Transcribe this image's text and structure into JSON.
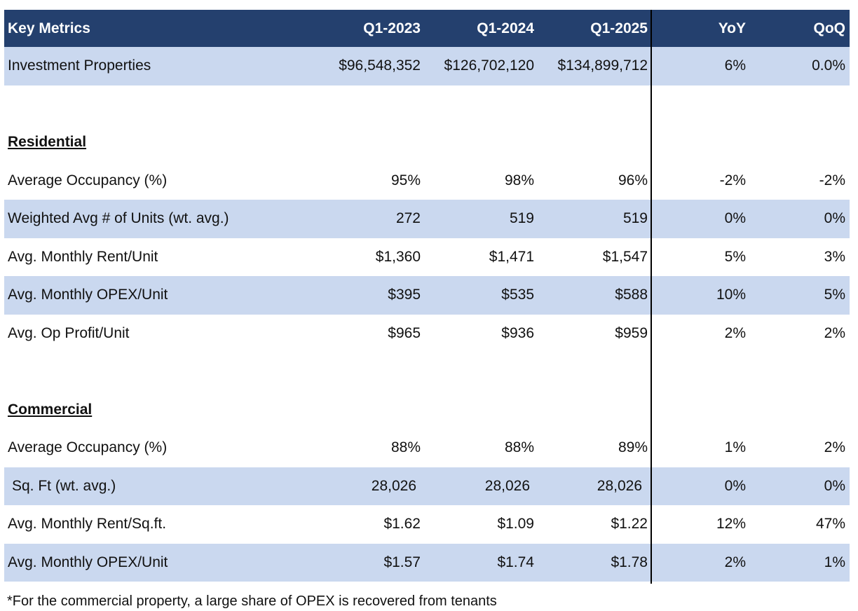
{
  "header": {
    "label": "Key Metrics",
    "col1": "Q1-2023",
    "col2": "Q1-2024",
    "col3": "Q1-2025",
    "col4": "YoY",
    "col5": "QoQ"
  },
  "investment": {
    "label": "Investment Properties",
    "v1": "$96,548,352",
    "v2": "$126,702,120",
    "v3": "$134,899,712",
    "yoy": "6%",
    "qoq": "0.0%"
  },
  "residential": {
    "title": "Residential",
    "rows": [
      {
        "label": "Average Occupancy (%)",
        "v1": "95%",
        "v2": "98%",
        "v3": "96%",
        "yoy": "-2%",
        "qoq": "-2%"
      },
      {
        "label": "Weighted Avg # of Units (wt. avg.)",
        "v1": "272",
        "v2": "519",
        "v3": "519",
        "yoy": "0%",
        "qoq": "0%"
      },
      {
        "label": "Avg. Monthly Rent/Unit",
        "v1": "$1,360",
        "v2": "$1,471",
        "v3": "$1,547",
        "yoy": "5%",
        "qoq": "3%"
      },
      {
        "label": "Avg. Monthly OPEX/Unit",
        "v1": "$395",
        "v2": "$535",
        "v3": "$588",
        "yoy": "10%",
        "qoq": "5%"
      },
      {
        "label": "Avg. Op Profit/Unit",
        "v1": "$965",
        "v2": "$936",
        "v3": "$959",
        "yoy": "2%",
        "qoq": "2%"
      }
    ]
  },
  "commercial": {
    "title": "Commercial",
    "rows": [
      {
        "label": "Average Occupancy (%)",
        "v1": "88%",
        "v2": "88%",
        "v3": "89%",
        "yoy": "1%",
        "qoq": "2%"
      },
      {
        "label": "Sq. Ft (wt. avg.)",
        "v1": "28,026",
        "v2": "28,026",
        "v3": "28,026",
        "yoy": "0%",
        "qoq": "0%"
      },
      {
        "label": "Avg. Monthly Rent/Sq.ft.",
        "v1": "$1.62",
        "v2": "$1.09",
        "v3": "$1.22",
        "yoy": "12%",
        "qoq": "47%"
      },
      {
        "label": "Avg. Monthly OPEX/Unit",
        "v1": "$1.57",
        "v2": "$1.74",
        "v3": "$1.78",
        "yoy": "2%",
        "qoq": "1%"
      }
    ]
  },
  "footnote": "*For the commercial property,  a large share of OPEX is recovered from tenants",
  "colors": {
    "header_bg": "#24406e",
    "shade_bg": "#cad8ef"
  }
}
